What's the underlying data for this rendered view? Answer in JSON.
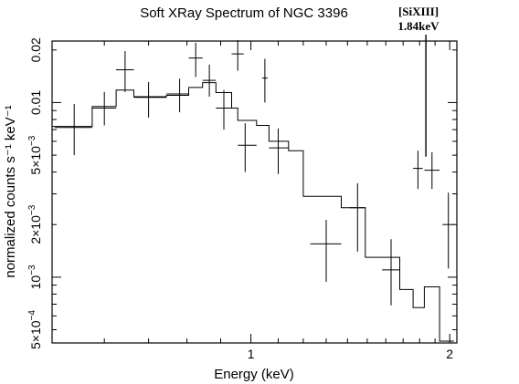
{
  "chart_data": {
    "type": "scatter",
    "title": "Soft XRay Spectrum of NGC 3396",
    "xlabel": "Energy (keV)",
    "ylabel": "normalized counts s⁻¹ keV⁻¹",
    "x_scale": "log",
    "y_scale": "log",
    "xlim": [
      0.5,
      2.05
    ],
    "ylim": [
      0.00042,
      0.0225
    ],
    "x_ticks": [
      {
        "value": 1,
        "label": "1"
      },
      {
        "value": 2,
        "label": "2"
      }
    ],
    "y_ticks": [
      {
        "value": 0.0005,
        "mant": "5×10",
        "exp": "−4"
      },
      {
        "value": 0.001,
        "mant": "10",
        "exp": "−3"
      },
      {
        "value": 0.002,
        "mant": "2×10",
        "exp": "−3"
      },
      {
        "value": 0.005,
        "mant": "5×10",
        "exp": "−3"
      },
      {
        "value": 0.01,
        "mant": "0.01",
        "exp": ""
      },
      {
        "value": 0.02,
        "mant": "0.02",
        "exp": ""
      }
    ],
    "series": [
      {
        "kind": "data",
        "points": [
          {
            "x": 0.54,
            "xlo": 0.505,
            "xhi": 0.575,
            "y": 0.0072,
            "ylo": 0.005,
            "yhi": 0.0098
          },
          {
            "x": 0.6,
            "xlo": 0.575,
            "xhi": 0.625,
            "y": 0.0093,
            "ylo": 0.0074,
            "yhi": 0.0115
          },
          {
            "x": 0.645,
            "xlo": 0.625,
            "xhi": 0.665,
            "y": 0.0154,
            "ylo": 0.0115,
            "yhi": 0.0197
          },
          {
            "x": 0.7,
            "xlo": 0.665,
            "xhi": 0.745,
            "y": 0.0107,
            "ylo": 0.0082,
            "yhi": 0.0131
          },
          {
            "x": 0.78,
            "xlo": 0.745,
            "xhi": 0.805,
            "y": 0.0112,
            "ylo": 0.0088,
            "yhi": 0.0137
          },
          {
            "x": 0.825,
            "xlo": 0.805,
            "xhi": 0.845,
            "y": 0.018,
            "ylo": 0.014,
            "yhi": 0.022
          },
          {
            "x": 0.865,
            "xlo": 0.845,
            "xhi": 0.885,
            "y": 0.0134,
            "ylo": 0.0108,
            "yhi": 0.0165
          },
          {
            "x": 0.91,
            "xlo": 0.885,
            "xhi": 0.935,
            "y": 0.0093,
            "ylo": 0.007,
            "yhi": 0.0118
          },
          {
            "x": 0.955,
            "xlo": 0.935,
            "xhi": 0.975,
            "y": 0.019,
            "ylo": 0.0152,
            "yhi": 0.0228
          },
          {
            "x": 0.98,
            "xlo": 0.955,
            "xhi": 1.02,
            "y": 0.0057,
            "ylo": 0.004,
            "yhi": 0.0076
          },
          {
            "x": 1.05,
            "xlo": 1.04,
            "xhi": 1.06,
            "y": 0.0138,
            "ylo": 0.01,
            "yhi": 0.0178
          },
          {
            "x": 1.1,
            "xlo": 1.065,
            "xhi": 1.14,
            "y": 0.0055,
            "ylo": 0.0039,
            "yhi": 0.0071
          },
          {
            "x": 1.3,
            "xlo": 1.23,
            "xhi": 1.37,
            "y": 0.00155,
            "ylo": 0.00094,
            "yhi": 0.00213
          },
          {
            "x": 1.45,
            "xlo": 1.41,
            "xhi": 1.49,
            "y": 0.0025,
            "ylo": 0.0014,
            "yhi": 0.00345
          },
          {
            "x": 1.63,
            "xlo": 1.58,
            "xhi": 1.68,
            "y": 0.0011,
            "ylo": 0.00069,
            "yhi": 0.00165
          },
          {
            "x": 1.79,
            "xlo": 1.76,
            "xhi": 1.82,
            "y": 0.0042,
            "ylo": 0.0032,
            "yhi": 0.0053
          },
          {
            "x": 1.88,
            "xlo": 1.83,
            "xhi": 1.93,
            "y": 0.0041,
            "ylo": 0.0032,
            "yhi": 0.0052
          },
          {
            "x": 1.99,
            "xlo": 1.95,
            "xhi": 2.03,
            "y": 0.002,
            "ylo": 0.00112,
            "yhi": 0.00305
          }
        ]
      },
      {
        "kind": "model",
        "steps": [
          {
            "x0": 0.5,
            "x1": 0.575,
            "y": 0.0073
          },
          {
            "x0": 0.575,
            "x1": 0.625,
            "y": 0.0095
          },
          {
            "x0": 0.625,
            "x1": 0.665,
            "y": 0.0118
          },
          {
            "x0": 0.665,
            "x1": 0.745,
            "y": 0.0108
          },
          {
            "x0": 0.745,
            "x1": 0.805,
            "y": 0.011
          },
          {
            "x0": 0.805,
            "x1": 0.845,
            "y": 0.0122
          },
          {
            "x0": 0.845,
            "x1": 0.885,
            "y": 0.013
          },
          {
            "x0": 0.885,
            "x1": 0.935,
            "y": 0.0114
          },
          {
            "x0": 0.935,
            "x1": 0.955,
            "y": 0.0093
          },
          {
            "x0": 0.955,
            "x1": 1.02,
            "y": 0.0079
          },
          {
            "x0": 1.02,
            "x1": 1.065,
            "y": 0.0074
          },
          {
            "x0": 1.065,
            "x1": 1.14,
            "y": 0.006
          },
          {
            "x0": 1.14,
            "x1": 1.2,
            "y": 0.0053
          },
          {
            "x0": 1.2,
            "x1": 1.37,
            "y": 0.0029
          },
          {
            "x0": 1.37,
            "x1": 1.49,
            "y": 0.0025
          },
          {
            "x0": 1.49,
            "x1": 1.68,
            "y": 0.0013
          },
          {
            "x0": 1.68,
            "x1": 1.76,
            "y": 0.00085
          },
          {
            "x0": 1.76,
            "x1": 1.83,
            "y": 0.00067
          },
          {
            "x0": 1.83,
            "x1": 1.93,
            "y": 0.00088
          },
          {
            "x0": 1.93,
            "x1": 2.03,
            "y": 0.00043
          }
        ]
      }
    ],
    "annotations": [
      {
        "text": "[SiXIII]",
        "text2": "1.84keV",
        "x": 1.84
      }
    ],
    "grid": false,
    "legend": "none"
  }
}
